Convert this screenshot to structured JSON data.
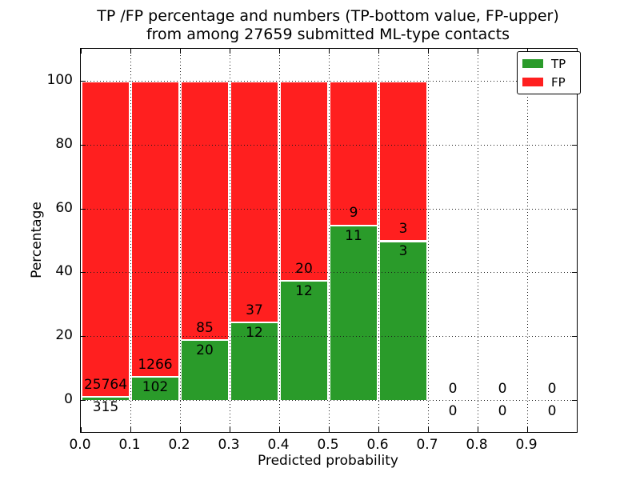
{
  "title": {
    "line1": "TP /FP percentage and numbers (TP-bottom value, FP-upper)",
    "line2": "from among 27659 submitted ML-type contacts"
  },
  "axes": {
    "xlabel": "Predicted probability",
    "ylabel": "Percentage",
    "xticklabels": [
      "0.0",
      "0.1",
      "0.2",
      "0.3",
      "0.4",
      "0.5",
      "0.6",
      "0.7",
      "0.8",
      "0.9"
    ],
    "yticks": [
      0,
      20,
      40,
      60,
      80,
      100
    ],
    "xlim": [
      0.0,
      1.0
    ],
    "ylim": [
      -10,
      110
    ],
    "grid": "dotted"
  },
  "legend": {
    "position": "upper-right",
    "items": [
      {
        "label": "TP",
        "color": "#2a9b2a"
      },
      {
        "label": "FP",
        "color": "#ff1f1f"
      }
    ]
  },
  "colors": {
    "tp": "#2a9b2a",
    "fp": "#ff1f1f",
    "bar_edge": "#ffffff",
    "grid": "#1a1a1a"
  },
  "total_contacts": 27659,
  "chart_data": {
    "type": "bar",
    "stacked": true,
    "normalized_to_percent": true,
    "bin_width": 0.1,
    "title": "TP /FP percentage and numbers (TP-bottom value, FP-upper) from among 27659 submitted ML-type contacts",
    "xlabel": "Predicted probability",
    "ylabel": "Percentage",
    "categories": [
      "0.0-0.1",
      "0.1-0.2",
      "0.2-0.3",
      "0.3-0.4",
      "0.4-0.5",
      "0.5-0.6",
      "0.6-0.7",
      "0.7-0.8",
      "0.8-0.9",
      "0.9-1.0"
    ],
    "series": [
      {
        "name": "TP",
        "counts": [
          315,
          102,
          20,
          12,
          12,
          11,
          3,
          0,
          0,
          0
        ]
      },
      {
        "name": "FP",
        "counts": [
          25764,
          1266,
          85,
          37,
          20,
          9,
          3,
          0,
          0,
          0
        ]
      }
    ],
    "tp_percent": [
      1.21,
      7.46,
      19.05,
      24.49,
      37.5,
      55.0,
      50.0,
      0,
      0,
      0
    ],
    "bar_total_percent": 100
  }
}
